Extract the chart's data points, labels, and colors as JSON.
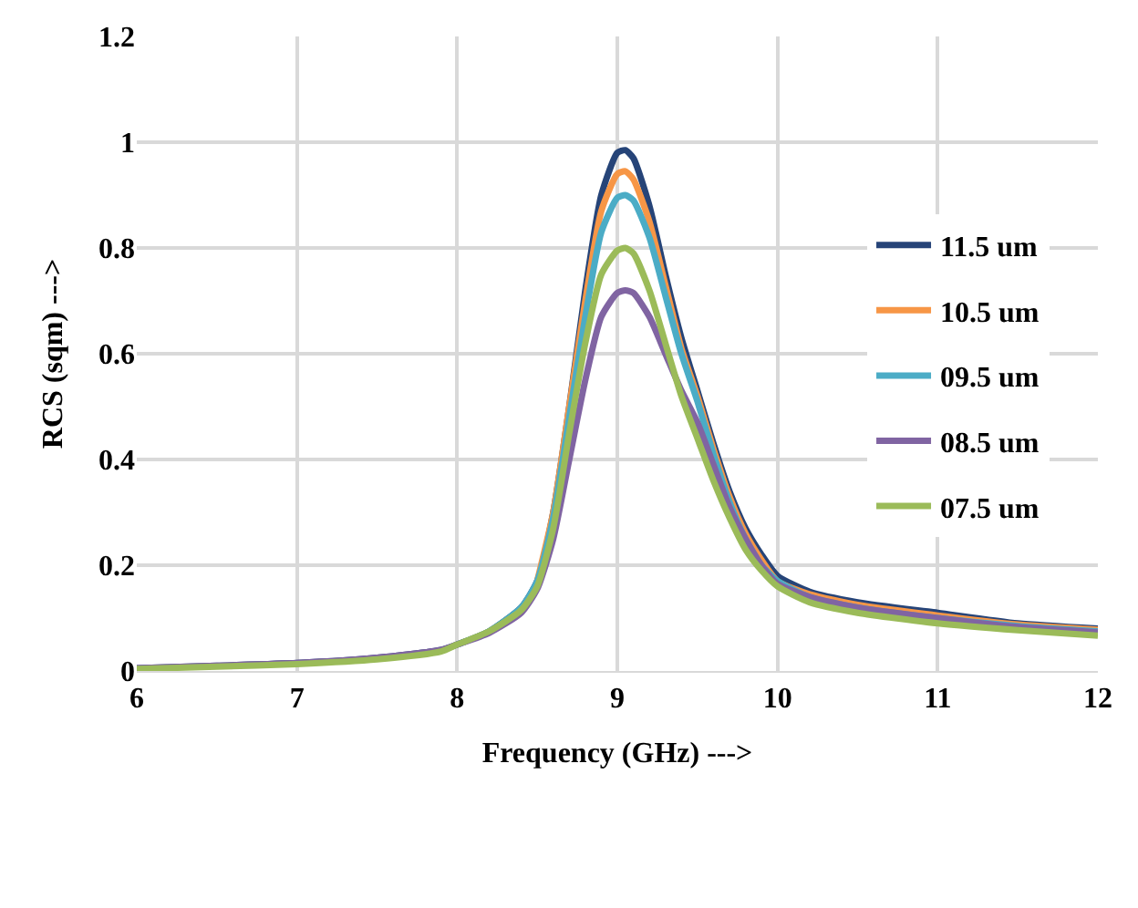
{
  "chart_data": {
    "type": "line",
    "xlabel": "Frequency (GHz) --->",
    "ylabel": "RCS (sqm) --->",
    "x": [
      6,
      6.5,
      7,
      7.5,
      7.9,
      8,
      8.2,
      8.4,
      8.5,
      8.6,
      8.7,
      8.8,
      8.9,
      9,
      9.05,
      9.1,
      9.2,
      9.3,
      9.4,
      9.5,
      9.6,
      9.7,
      9.8,
      9.9,
      10,
      10.2,
      10.5,
      11,
      11.5,
      12
    ],
    "xlim": [
      6,
      12
    ],
    "xticks": [
      6,
      7,
      8,
      9,
      10,
      11,
      12
    ],
    "ylim": [
      0,
      1.2
    ],
    "yticks": [
      0,
      0.2,
      0.4,
      0.6,
      0.8,
      1,
      1.2
    ],
    "grid": true,
    "legend": "right",
    "line_style": "solid",
    "marker": "none",
    "series": [
      {
        "name": "11.5 um",
        "color": "#264478",
        "values": [
          0.005,
          0.01,
          0.015,
          0.025,
          0.04,
          0.05,
          0.075,
          0.12,
          0.17,
          0.3,
          0.5,
          0.72,
          0.9,
          0.98,
          0.985,
          0.97,
          0.88,
          0.75,
          0.63,
          0.53,
          0.43,
          0.34,
          0.27,
          0.22,
          0.18,
          0.15,
          0.13,
          0.11,
          0.09,
          0.08
        ]
      },
      {
        "name": "10.5 um",
        "color": "#f79646",
        "values": [
          null,
          null,
          null,
          null,
          null,
          null,
          null,
          null,
          0.17,
          0.3,
          0.5,
          0.7,
          0.87,
          0.94,
          0.945,
          0.93,
          0.85,
          0.73,
          0.61,
          0.52,
          0.42,
          0.33,
          0.26,
          0.21,
          0.17,
          0.145,
          0.125,
          0.105,
          0.088,
          0.078
        ]
      },
      {
        "name": "09.5 um",
        "color": "#4bacc6",
        "values": [
          null,
          null,
          null,
          null,
          null,
          0.05,
          0.075,
          0.12,
          0.17,
          0.29,
          0.48,
          0.67,
          0.83,
          0.895,
          0.9,
          0.89,
          0.82,
          0.71,
          0.6,
          0.51,
          0.41,
          0.32,
          0.25,
          0.2,
          0.17,
          0.14,
          0.12,
          0.1,
          0.085,
          0.075
        ]
      },
      {
        "name": "08.5 um",
        "color": "#8064a2",
        "values": [
          0.005,
          0.01,
          0.015,
          0.025,
          0.04,
          0.05,
          0.072,
          0.11,
          0.155,
          0.25,
          0.4,
          0.55,
          0.67,
          0.715,
          0.72,
          0.715,
          0.67,
          0.6,
          0.53,
          0.47,
          0.39,
          0.31,
          0.25,
          0.2,
          0.165,
          0.14,
          0.12,
          0.1,
          0.083,
          0.073
        ]
      },
      {
        "name": "07.5 um",
        "color": "#9bbb59",
        "values": [
          0.004,
          0.008,
          0.013,
          0.022,
          0.037,
          0.05,
          0.075,
          0.115,
          0.16,
          0.27,
          0.45,
          0.62,
          0.75,
          0.795,
          0.8,
          0.79,
          0.72,
          0.62,
          0.52,
          0.44,
          0.36,
          0.29,
          0.23,
          0.19,
          0.16,
          0.13,
          0.11,
          0.09,
          0.077,
          0.067
        ]
      }
    ]
  }
}
